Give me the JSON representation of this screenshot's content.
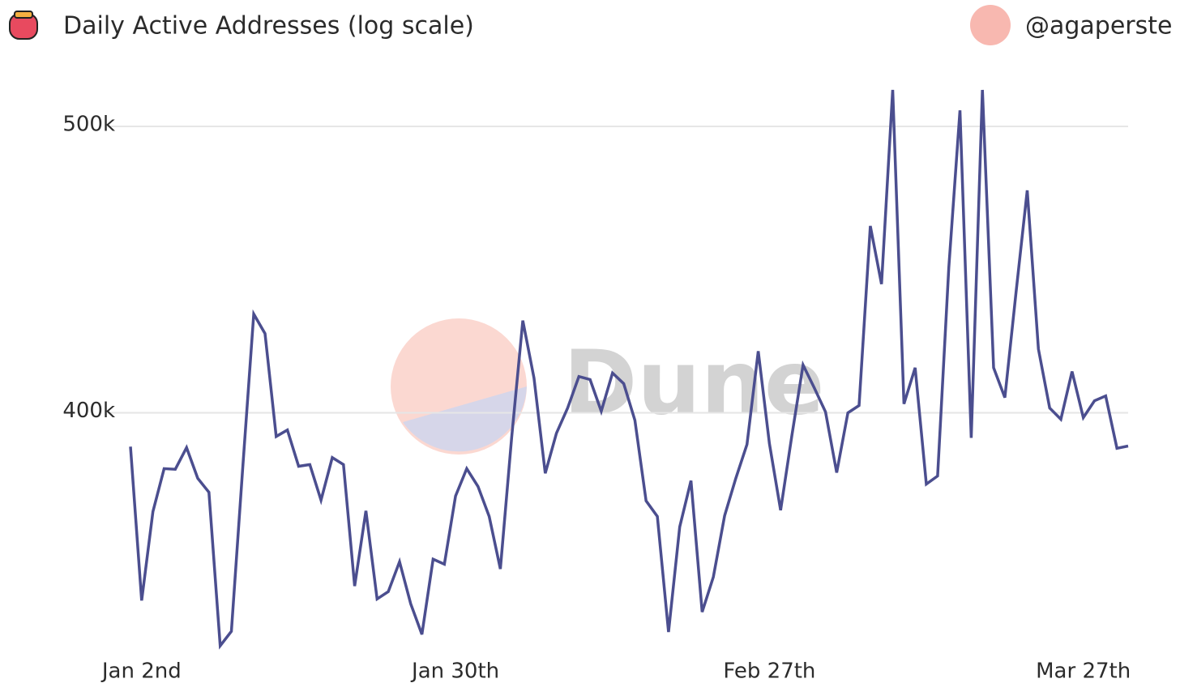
{
  "header": {
    "title": "Daily Active Addresses (log scale)",
    "author": "@agaperste"
  },
  "watermark": "Dune",
  "chart_data": {
    "type": "line",
    "log_scale": true,
    "grid": true,
    "color": "#4b4e8f",
    "categories": [
      null,
      "Jan 2nd",
      null,
      null,
      null,
      null,
      null,
      null,
      null,
      null,
      null,
      null,
      null,
      null,
      null,
      null,
      null,
      null,
      null,
      null,
      null,
      null,
      null,
      null,
      null,
      null,
      null,
      null,
      null,
      "Jan 30th",
      null,
      null,
      null,
      null,
      null,
      null,
      null,
      null,
      null,
      null,
      null,
      null,
      null,
      null,
      null,
      null,
      null,
      null,
      null,
      null,
      null,
      null,
      null,
      null,
      null,
      null,
      null,
      "Feb 27th",
      null,
      null,
      null,
      null,
      null,
      null,
      null,
      null,
      null,
      null,
      null,
      null,
      null,
      null,
      null,
      null,
      null,
      null,
      null,
      null,
      null,
      null,
      null,
      null,
      null,
      null,
      null,
      "Mar 27th",
      null,
      null,
      null,
      null
    ],
    "values": [
      389600,
      345600,
      370400,
      383000,
      382800,
      389300,
      380100,
      376000,
      333600,
      337400,
      382500,
      432000,
      425500,
      392700,
      394700,
      383700,
      384200,
      373700,
      386300,
      384200,
      349500,
      370600,
      346000,
      348000,
      356200,
      344700,
      336600,
      356900,
      355500,
      374900,
      383000,
      377700,
      369000,
      354200,
      392300,
      429800,
      411000,
      381600,
      393700,
      401500,
      411500,
      410500,
      400500,
      412600,
      409200,
      397700,
      373500,
      369000,
      337200,
      366000,
      379400,
      342500,
      352000,
      369200,
      380100,
      390300,
      419700,
      390500,
      370800,
      393000,
      415200,
      407900,
      400300,
      381800,
      400000,
      402300,
      462700,
      442200,
      514400,
      402800,
      414300,
      378400,
      380800,
      447800,
      506300,
      392300,
      514400,
      414300,
      404800,
      439400,
      475700,
      420400,
      401500,
      398000,
      413100,
      398500,
      403800,
      405300,
      389100,
      389800
    ],
    "ylim": [
      333000,
      518000
    ],
    "yticks": [
      {
        "value": 400000,
        "label": "400k"
      },
      {
        "value": 500000,
        "label": "500k"
      }
    ]
  }
}
